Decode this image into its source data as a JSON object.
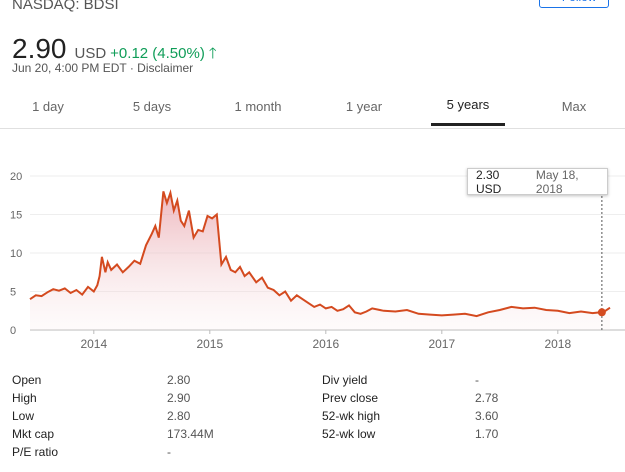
{
  "header": {
    "ticker": "NASDAQ: BDSI",
    "follow_label": "+ Follow",
    "price": "2.90",
    "currency": "USD",
    "change": "+0.12 (4.50%)",
    "subline": "Jun 20, 4:00 PM EDT · Disclaimer"
  },
  "tabs": [
    {
      "label": "1 day",
      "active": false
    },
    {
      "label": "5 days",
      "active": false
    },
    {
      "label": "1 month",
      "active": false
    },
    {
      "label": "1 year",
      "active": false
    },
    {
      "label": "5 years",
      "active": true
    },
    {
      "label": "Max",
      "active": false
    }
  ],
  "tooltip": {
    "price": "2.30 USD",
    "date": "May 18, 2018"
  },
  "chart_data": {
    "type": "area",
    "y_ticks": [
      "20",
      "15",
      "10",
      "5",
      "0"
    ],
    "x_ticks": [
      "2014",
      "2015",
      "2016",
      "2017",
      "2018"
    ],
    "ylim": [
      0,
      20
    ],
    "xlim": [
      2013.45,
      2018.45
    ],
    "grid": true,
    "line_color": "#d44a1f",
    "series": [
      {
        "x": [
          2013.45,
          2013.5,
          2013.55,
          2013.6,
          2013.65,
          2013.7,
          2013.75,
          2013.8,
          2013.85,
          2013.9,
          2013.95,
          2014.0,
          2014.03,
          2014.05,
          2014.07,
          2014.1,
          2014.12,
          2014.15,
          2014.2,
          2014.25,
          2014.3,
          2014.35,
          2014.4,
          2014.45,
          2014.5,
          2014.53,
          2014.56,
          2014.6,
          2014.63,
          2014.66,
          2014.69,
          2014.72,
          2014.75,
          2014.78,
          2014.82,
          2014.86,
          2014.9,
          2014.94,
          2014.98,
          2015.02,
          2015.06,
          2015.1,
          2015.14,
          2015.18,
          2015.22,
          2015.26,
          2015.3,
          2015.34,
          2015.4,
          2015.45,
          2015.5,
          2015.55,
          2015.6,
          2015.65,
          2015.7,
          2015.75,
          2015.8,
          2015.85,
          2015.9,
          2015.95,
          2016.0,
          2016.05,
          2016.1,
          2016.15,
          2016.2,
          2016.25,
          2016.3,
          2016.35,
          2016.4,
          2016.5,
          2016.6,
          2016.7,
          2016.8,
          2016.9,
          2017.0,
          2017.1,
          2017.2,
          2017.3,
          2017.4,
          2017.5,
          2017.6,
          2017.7,
          2017.8,
          2017.9,
          2018.0,
          2018.1,
          2018.2,
          2018.3,
          2018.37,
          2018.41,
          2018.45
        ],
        "values": [
          4.0,
          4.5,
          4.4,
          4.9,
          5.3,
          5.1,
          5.4,
          4.8,
          5.2,
          4.6,
          5.6,
          5.0,
          5.8,
          7.0,
          9.5,
          7.5,
          8.8,
          7.8,
          8.5,
          7.5,
          8.2,
          9.0,
          8.6,
          11.0,
          12.5,
          13.5,
          12.0,
          18.0,
          16.5,
          17.8,
          15.5,
          16.8,
          14.2,
          13.5,
          15.5,
          12.0,
          13.0,
          12.8,
          14.8,
          14.5,
          15.0,
          8.5,
          9.5,
          7.8,
          7.5,
          8.2,
          7.0,
          7.5,
          6.2,
          6.8,
          5.5,
          5.2,
          4.5,
          5.0,
          3.8,
          4.5,
          4.0,
          3.5,
          3.0,
          3.3,
          2.8,
          3.0,
          2.5,
          2.7,
          3.2,
          2.3,
          2.1,
          2.4,
          2.8,
          2.5,
          2.4,
          2.6,
          2.1,
          2.0,
          1.9,
          2.0,
          2.1,
          1.8,
          2.3,
          2.6,
          3.0,
          2.8,
          2.9,
          2.6,
          2.5,
          2.2,
          2.4,
          2.2,
          2.3,
          2.5,
          2.9
        ]
      }
    ],
    "marker": {
      "x": 2018.38,
      "y": 2.3
    }
  },
  "stats": {
    "left": [
      {
        "label": "Open",
        "value": "2.80"
      },
      {
        "label": "High",
        "value": "2.90"
      },
      {
        "label": "Low",
        "value": "2.80"
      },
      {
        "label": "Mkt cap",
        "value": "173.44M"
      },
      {
        "label": "P/E ratio",
        "value": "-"
      }
    ],
    "right": [
      {
        "label": "Div yield",
        "value": "-"
      },
      {
        "label": "Prev close",
        "value": "2.78"
      },
      {
        "label": "52-wk high",
        "value": "3.60"
      },
      {
        "label": "52-wk low",
        "value": "1.70"
      }
    ]
  }
}
